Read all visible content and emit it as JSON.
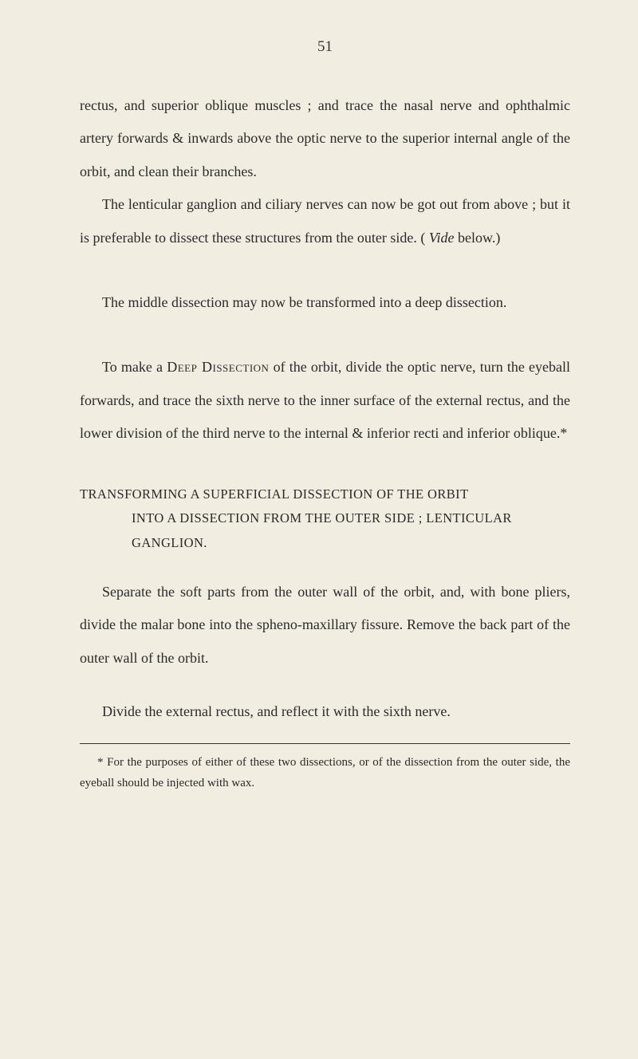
{
  "page_number": "51",
  "paragraphs": {
    "p1": "rectus, and superior oblique muscles ; and trace the nasal nerve and ophthalmic artery forwards & inwards above the optic nerve to the superior internal angle of the orbit, and clean their branches.",
    "p2": "The lenticular ganglion and ciliary nerves can now be got out from above ; but it is preferable to dissect these structures from the outer side. ( ",
    "p2_italic": "Vide",
    "p2_after": " below.)",
    "p3": "The middle dissection may now be transformed into a deep dissection.",
    "p4_pre": "To make a ",
    "p4_caps": "Deep Dissection",
    "p4_post": " of the orbit, divide the optic nerve, turn the eyeball forwards, and trace the sixth nerve to the inner surface of the external rectus, and the lower division of the third nerve to the internal & inferior recti and inferior oblique.*",
    "heading_line1": "TRANSFORMING A SUPERFICIAL DISSECTION OF THE ORBIT",
    "heading_line2": "INTO A DISSECTION FROM THE OUTER SIDE ; LENTICULAR GANGLION.",
    "p5": "Separate the soft parts from the outer wall of the orbit, and, with bone pliers, divide the malar bone into the spheno-maxillary fissure. Remove the back part of the outer wall of the orbit.",
    "p6": "Divide the external rectus, and reflect it with the sixth nerve.",
    "footnote": "* For the purposes of either of these two dissections, or of the dissection from the outer side, the eyeball should be injected with wax."
  },
  "colors": {
    "background": "#f2ede1",
    "text": "#2a2a2a",
    "rule": "#333333"
  },
  "typography": {
    "body_font_size": 18,
    "body_line_height": 2.3,
    "heading_font_size": 16.5,
    "footnote_font_size": 15,
    "page_number_font_size": 19
  }
}
